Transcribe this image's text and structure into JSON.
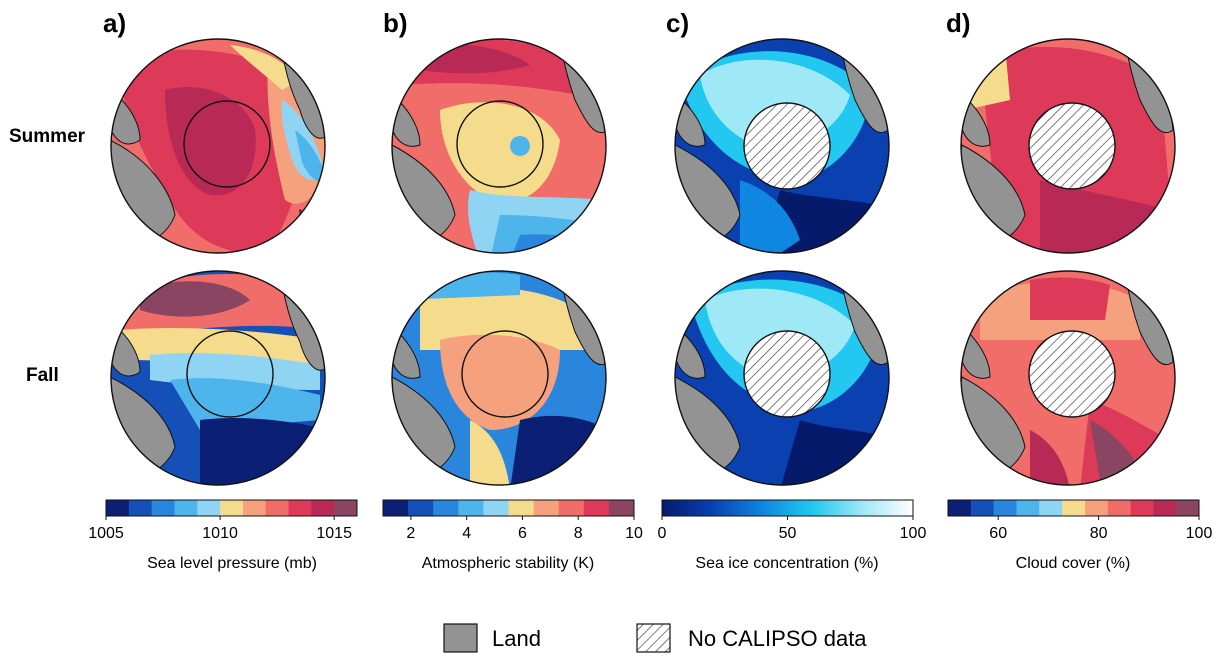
{
  "panels": [
    {
      "label": "a)"
    },
    {
      "label": "b)"
    },
    {
      "label": "c)"
    },
    {
      "label": "d)"
    }
  ],
  "rows": [
    {
      "label": "Summer"
    },
    {
      "label": "Fall"
    }
  ],
  "colorbars": [
    {
      "title": "Sea level pressure (mb)",
      "ticks": [
        "1005",
        "1010",
        "1015"
      ],
      "tick_values": [
        1005,
        1010,
        1015
      ],
      "range": [
        1005,
        1016
      ],
      "type": "discrete",
      "colors": [
        "#0b1f75",
        "#1550b8",
        "#2a86dc",
        "#4eb4ec",
        "#8fd5f3",
        "#f5dc8c",
        "#f6a17e",
        "#f06d6a",
        "#dc3a58",
        "#b82a55",
        "#8a4562"
      ]
    },
    {
      "title": "Atmospheric stability (K)",
      "ticks": [
        "2",
        "4",
        "6",
        "8",
        "10"
      ],
      "tick_values": [
        2,
        4,
        6,
        8,
        10
      ],
      "range": [
        1,
        10
      ],
      "type": "discrete",
      "colors": [
        "#0b1f75",
        "#1550b8",
        "#2a86dc",
        "#4eb4ec",
        "#8fd5f3",
        "#f5dc8c",
        "#f6a17e",
        "#f06d6a",
        "#dc3a58",
        "#8a4562"
      ]
    },
    {
      "title": "Sea ice concentration (%)",
      "ticks": [
        "0",
        "50",
        "100"
      ],
      "tick_values": [
        0,
        50,
        100
      ],
      "range": [
        0,
        100
      ],
      "type": "continuous",
      "colors": [
        "#061a6b",
        "#0a40b0",
        "#0f86e0",
        "#22c8f0",
        "#9fe8f6",
        "#ffffff"
      ]
    },
    {
      "title": "Cloud cover (%)",
      "ticks": [
        "60",
        "80",
        "100"
      ],
      "tick_values": [
        60,
        80,
        100
      ],
      "range": [
        50,
        100
      ],
      "type": "discrete",
      "colors": [
        "#0b1f75",
        "#1550b8",
        "#2a86dc",
        "#4eb4ec",
        "#8fd5f3",
        "#f5dc8c",
        "#f6a17e",
        "#f06d6a",
        "#dc3a58",
        "#b82a55",
        "#8a4562"
      ]
    }
  ],
  "legend": {
    "land_label": "Land",
    "no_data_label": "No CALIPSO data",
    "land_color": "#939393"
  }
}
